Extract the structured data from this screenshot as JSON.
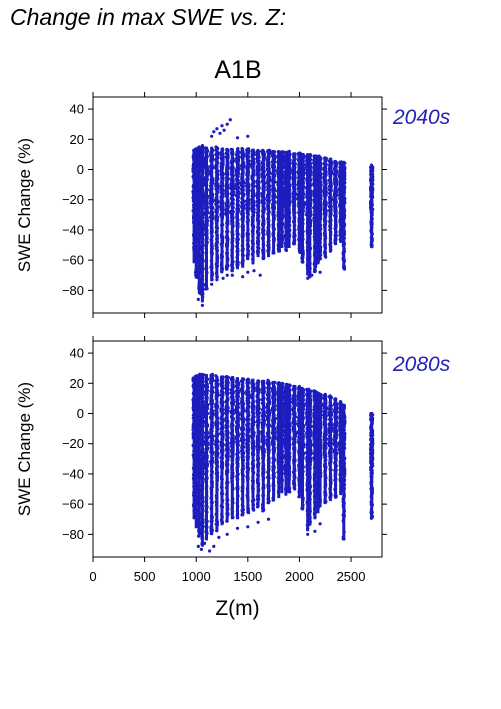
{
  "heading": "Change in max SWE vs. Z:",
  "scenario": "A1B",
  "colors": {
    "points": "#1c1cbf",
    "period_label": "#2222bb",
    "frame": "#000000"
  },
  "chart_data": [
    {
      "type": "scatter",
      "period_label": "2040s",
      "ylabel": "SWE Change (%)",
      "xlabel": "",
      "xlim": [
        0,
        2800
      ],
      "ylim": [
        -95,
        48
      ],
      "yticks": [
        40,
        20,
        0,
        -20,
        -40,
        -60,
        -80
      ],
      "xticks": [],
      "x_columns": [
        980,
        1000,
        1030,
        1060,
        1100,
        1150,
        1200,
        1250,
        1300,
        1350,
        1400,
        1450,
        1500,
        1550,
        1600,
        1650,
        1700,
        1750,
        1800,
        1830,
        1870,
        1900,
        1950,
        2000,
        2030,
        2080,
        2100,
        2150,
        2180,
        2200,
        2250,
        2300,
        2350,
        2400,
        2430,
        2700
      ],
      "y_top": [
        13,
        14,
        15,
        16,
        15,
        15,
        15,
        14,
        14,
        14,
        14,
        14,
        14,
        13,
        13,
        13,
        13,
        12,
        12,
        12,
        12,
        12,
        11,
        11,
        10,
        10,
        10,
        9,
        9,
        8,
        8,
        7,
        6,
        5,
        5,
        3
      ],
      "y_bottom": [
        -62,
        -72,
        -82,
        -88,
        -80,
        -74,
        -72,
        -68,
        -66,
        -68,
        -66,
        -65,
        -60,
        -62,
        -58,
        -60,
        -58,
        -56,
        -55,
        -52,
        -54,
        -52,
        -50,
        -55,
        -62,
        -70,
        -72,
        -68,
        -62,
        -60,
        -58,
        -55,
        -50,
        -48,
        -66,
        -52
      ],
      "extra_points": [
        [
          1150,
          22
        ],
        [
          1170,
          25
        ],
        [
          1200,
          27
        ],
        [
          1250,
          29
        ],
        [
          1300,
          30
        ],
        [
          1330,
          33
        ],
        [
          1400,
          21
        ],
        [
          1500,
          22
        ],
        [
          1270,
          26
        ],
        [
          1230,
          24
        ],
        [
          1020,
          -86
        ],
        [
          1040,
          -82
        ],
        [
          1060,
          -90
        ],
        [
          1090,
          -76
        ],
        [
          1150,
          -76
        ],
        [
          1200,
          -73
        ],
        [
          1260,
          -72
        ],
        [
          1300,
          -70
        ],
        [
          1350,
          -70
        ],
        [
          1450,
          -71
        ],
        [
          1500,
          -68
        ],
        [
          1560,
          -67
        ],
        [
          1620,
          -70
        ],
        [
          2080,
          -72
        ],
        [
          2120,
          -70
        ],
        [
          2200,
          -68
        ]
      ]
    },
    {
      "type": "scatter",
      "period_label": "2080s",
      "ylabel": "SWE Change (%)",
      "xlabel": "Z(m)",
      "xlim": [
        0,
        2800
      ],
      "ylim": [
        -95,
        48
      ],
      "yticks": [
        40,
        20,
        0,
        -20,
        -40,
        -60,
        -80
      ],
      "xticks": [
        0,
        500,
        1000,
        1500,
        2000,
        2500
      ],
      "x_columns": [
        980,
        1000,
        1030,
        1060,
        1100,
        1150,
        1200,
        1250,
        1300,
        1350,
        1400,
        1450,
        1500,
        1550,
        1600,
        1650,
        1700,
        1750,
        1800,
        1830,
        1870,
        1900,
        1950,
        2000,
        2030,
        2080,
        2100,
        2150,
        2180,
        2200,
        2250,
        2300,
        2350,
        2400,
        2430,
        2700
      ],
      "y_top": [
        24,
        25,
        26,
        26,
        26,
        26,
        25,
        25,
        25,
        24,
        24,
        24,
        23,
        23,
        22,
        22,
        22,
        21,
        21,
        20,
        20,
        19,
        18,
        18,
        17,
        16,
        15,
        15,
        14,
        13,
        13,
        12,
        10,
        8,
        6,
        1
      ],
      "y_bottom": [
        -70,
        -76,
        -82,
        -88,
        -84,
        -80,
        -78,
        -74,
        -72,
        -70,
        -70,
        -68,
        -66,
        -64,
        -62,
        -65,
        -60,
        -58,
        -56,
        -52,
        -54,
        -52,
        -50,
        -56,
        -64,
        -78,
        -74,
        -70,
        -66,
        -62,
        -60,
        -58,
        -56,
        -54,
        -84,
        -70
      ],
      "extra_points": [
        [
          1020,
          -88
        ],
        [
          1050,
          -90
        ],
        [
          1080,
          -86
        ],
        [
          1130,
          -91
        ],
        [
          1170,
          -88
        ],
        [
          1220,
          -82
        ],
        [
          1300,
          -80
        ],
        [
          1400,
          -76
        ],
        [
          1500,
          -75
        ],
        [
          1600,
          -72
        ],
        [
          1700,
          -70
        ],
        [
          2080,
          -80
        ],
        [
          2150,
          -78
        ],
        [
          2200,
          -73
        ],
        [
          2430,
          -83
        ]
      ]
    }
  ]
}
